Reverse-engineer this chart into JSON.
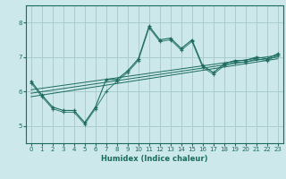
{
  "xlabel": "Humidex (Indice chaleur)",
  "xlim": [
    -0.5,
    23.5
  ],
  "ylim": [
    4.5,
    8.5
  ],
  "yticks": [
    5,
    6,
    7,
    8
  ],
  "xticks": [
    0,
    1,
    2,
    3,
    4,
    5,
    6,
    7,
    8,
    9,
    10,
    11,
    12,
    13,
    14,
    15,
    16,
    17,
    18,
    19,
    20,
    21,
    22,
    23
  ],
  "bg_color": "#cce8ea",
  "line_color": "#1a6b5e",
  "grid_color": "#a8ccce",
  "series_main": {
    "x": [
      0,
      1,
      2,
      3,
      4,
      5,
      6,
      7,
      8,
      9,
      10,
      11,
      12,
      13,
      14,
      15,
      16,
      17,
      18,
      19,
      20,
      21,
      22,
      23
    ],
    "y": [
      6.3,
      5.9,
      5.55,
      5.45,
      5.45,
      5.1,
      5.55,
      6.35,
      6.35,
      6.6,
      6.95,
      7.9,
      7.5,
      7.55,
      7.25,
      7.5,
      6.75,
      6.55,
      6.8,
      6.9,
      6.9,
      7.0,
      6.95,
      7.1
    ]
  },
  "series_lower": {
    "x": [
      0,
      1,
      2,
      3,
      4,
      5,
      6,
      7,
      8,
      9,
      10,
      11,
      12,
      13,
      14,
      15,
      16,
      17,
      18,
      19,
      20,
      21,
      22,
      23
    ],
    "y": [
      6.25,
      5.85,
      5.5,
      5.4,
      5.4,
      5.05,
      5.5,
      6.0,
      6.3,
      6.55,
      6.9,
      7.85,
      7.45,
      7.5,
      7.2,
      7.45,
      6.7,
      6.5,
      6.75,
      6.85,
      6.85,
      6.95,
      6.9,
      7.05
    ]
  },
  "trend_lines": [
    {
      "x": [
        0,
        23
      ],
      "y": [
        5.85,
        6.95
      ]
    },
    {
      "x": [
        0,
        23
      ],
      "y": [
        5.95,
        7.0
      ]
    },
    {
      "x": [
        0,
        23
      ],
      "y": [
        6.05,
        7.05
      ]
    }
  ]
}
